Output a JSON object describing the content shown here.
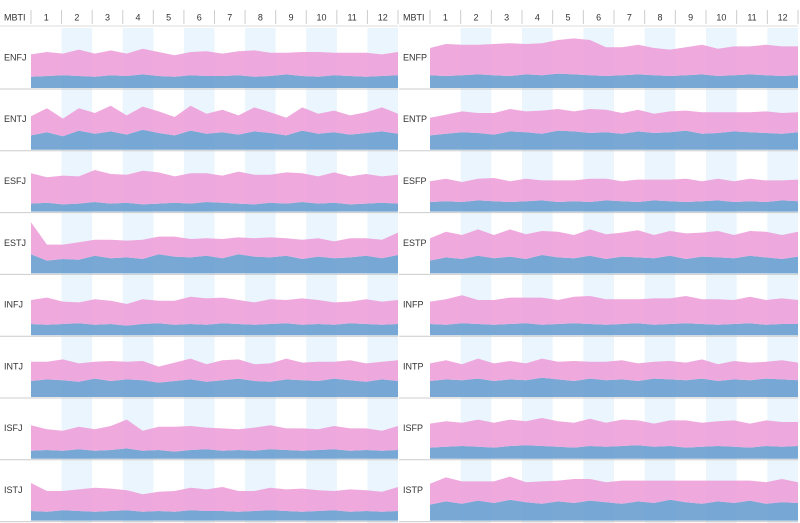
{
  "header": {
    "label": "MBTI",
    "months": [
      1,
      2,
      3,
      4,
      5,
      6,
      7,
      8,
      9,
      10,
      11,
      12
    ]
  },
  "chart_data": [
    {
      "type": "area",
      "title": "ENFJ",
      "ylim": [
        0,
        75
      ],
      "series": [
        {
          "color": "#6a9fcf",
          "values": [
            14,
            15,
            16,
            15,
            14,
            16,
            15,
            17,
            15,
            14,
            16,
            15,
            15,
            16,
            14,
            15,
            17,
            15,
            14,
            16,
            15,
            14,
            15,
            16
          ]
        },
        {
          "color": "#eda0d9",
          "values": [
            28,
            30,
            27,
            33,
            29,
            31,
            28,
            32,
            30,
            27,
            29,
            31,
            28,
            30,
            33,
            29,
            27,
            30,
            31,
            28,
            29,
            30,
            27,
            29
          ]
        }
      ]
    },
    {
      "type": "area",
      "title": "ENTJ",
      "ylim": [
        0,
        75
      ],
      "series": [
        {
          "color": "#6a9fcf",
          "values": [
            18,
            22,
            17,
            24,
            20,
            23,
            19,
            25,
            21,
            18,
            24,
            20,
            22,
            19,
            23,
            21,
            18,
            24,
            20,
            22,
            19,
            21,
            23,
            20
          ]
        },
        {
          "color": "#eda0d9",
          "values": [
            24,
            30,
            22,
            28,
            26,
            32,
            24,
            29,
            27,
            23,
            31,
            25,
            28,
            24,
            30,
            26,
            22,
            29,
            25,
            27,
            24,
            26,
            30,
            25
          ]
        }
      ]
    },
    {
      "type": "area",
      "title": "ESFJ",
      "ylim": [
        0,
        75
      ],
      "series": [
        {
          "color": "#6a9fcf",
          "values": [
            10,
            11,
            9,
            10,
            12,
            10,
            11,
            9,
            10,
            11,
            10,
            12,
            11,
            10,
            9,
            11,
            10,
            12,
            10,
            11,
            9,
            10,
            11,
            10
          ]
        },
        {
          "color": "#eda0d9",
          "values": [
            38,
            32,
            36,
            34,
            40,
            37,
            35,
            42,
            39,
            33,
            38,
            36,
            34,
            40,
            37,
            35,
            39,
            36,
            34,
            38,
            35,
            37,
            33,
            36
          ]
        }
      ]
    },
    {
      "type": "area",
      "title": "ESTJ",
      "ylim": [
        0,
        75
      ],
      "series": [
        {
          "color": "#6a9fcf",
          "values": [
            24,
            16,
            18,
            17,
            22,
            19,
            20,
            18,
            24,
            21,
            20,
            22,
            19,
            24,
            21,
            20,
            22,
            18,
            21,
            19,
            20,
            22,
            19,
            23
          ]
        },
        {
          "color": "#eda0d9",
          "values": [
            40,
            20,
            18,
            22,
            20,
            23,
            21,
            24,
            22,
            25,
            23,
            22,
            24,
            21,
            23,
            25,
            22,
            24,
            23,
            21,
            24,
            22,
            23,
            28
          ]
        }
      ]
    },
    {
      "type": "area",
      "title": "INFJ",
      "ylim": [
        0,
        75
      ],
      "series": [
        {
          "color": "#6a9fcf",
          "values": [
            14,
            13,
            14,
            15,
            13,
            14,
            12,
            14,
            15,
            13,
            14,
            13,
            15,
            14,
            13,
            14,
            15,
            13,
            14,
            13,
            15,
            14,
            13,
            14
          ]
        },
        {
          "color": "#eda0d9",
          "values": [
            30,
            34,
            28,
            26,
            32,
            29,
            27,
            31,
            28,
            30,
            34,
            33,
            32,
            30,
            28,
            31,
            29,
            33,
            30,
            28,
            27,
            31,
            29,
            30
          ]
        }
      ]
    },
    {
      "type": "area",
      "title": "INTJ",
      "ylim": [
        0,
        75
      ],
      "series": [
        {
          "color": "#6a9fcf",
          "values": [
            20,
            22,
            21,
            19,
            23,
            20,
            22,
            21,
            18,
            20,
            22,
            19,
            21,
            23,
            20,
            19,
            22,
            21,
            20,
            23,
            21,
            19,
            22,
            20
          ]
        },
        {
          "color": "#eda0d9",
          "values": [
            24,
            22,
            26,
            23,
            21,
            25,
            22,
            24,
            20,
            23,
            26,
            22,
            25,
            24,
            21,
            23,
            26,
            22,
            24,
            21,
            25,
            23,
            22,
            26
          ]
        }
      ]
    },
    {
      "type": "area",
      "title": "ISFJ",
      "ylim": [
        0,
        75
      ],
      "series": [
        {
          "color": "#6a9fcf",
          "values": [
            10,
            11,
            10,
            12,
            10,
            11,
            13,
            10,
            11,
            9,
            11,
            12,
            10,
            11,
            10,
            12,
            11,
            10,
            11,
            12,
            10,
            11,
            10,
            11
          ]
        },
        {
          "color": "#eda0d9",
          "values": [
            32,
            26,
            25,
            28,
            27,
            30,
            36,
            25,
            29,
            31,
            30,
            27,
            28,
            26,
            29,
            30,
            27,
            28,
            26,
            29,
            28,
            27,
            25,
            30
          ]
        }
      ]
    },
    {
      "type": "area",
      "title": "ISTJ",
      "ylim": [
        0,
        75
      ],
      "series": [
        {
          "color": "#6a9fcf",
          "values": [
            12,
            11,
            13,
            12,
            11,
            12,
            13,
            11,
            12,
            11,
            13,
            12,
            12,
            11,
            12,
            13,
            12,
            11,
            12,
            13,
            11,
            12,
            11,
            12
          ]
        },
        {
          "color": "#eda0d9",
          "values": [
            35,
            26,
            24,
            27,
            30,
            28,
            25,
            22,
            24,
            26,
            28,
            27,
            30,
            26,
            25,
            28,
            27,
            29,
            26,
            24,
            28,
            26,
            25,
            30
          ]
        }
      ]
    },
    {
      "type": "area",
      "title": "ENFP",
      "ylim": [
        0,
        75
      ],
      "series": [
        {
          "color": "#6a9fcf",
          "values": [
            16,
            15,
            16,
            17,
            16,
            15,
            17,
            16,
            18,
            17,
            16,
            15,
            16,
            17,
            16,
            15,
            16,
            17,
            15,
            16,
            17,
            16,
            15,
            16
          ]
        },
        {
          "color": "#eda0d9",
          "values": [
            34,
            40,
            38,
            37,
            39,
            41,
            38,
            40,
            42,
            45,
            44,
            36,
            35,
            37,
            34,
            33,
            35,
            37,
            34,
            36,
            35,
            38,
            37,
            36
          ]
        }
      ]
    },
    {
      "type": "area",
      "title": "ENTP",
      "ylim": [
        0,
        75
      ],
      "series": [
        {
          "color": "#6a9fcf",
          "values": [
            18,
            20,
            22,
            21,
            19,
            23,
            22,
            20,
            24,
            23,
            21,
            22,
            20,
            23,
            21,
            22,
            24,
            20,
            21,
            23,
            22,
            21,
            20,
            22
          ]
        },
        {
          "color": "#eda0d9",
          "values": [
            22,
            24,
            26,
            25,
            27,
            28,
            26,
            29,
            27,
            25,
            30,
            28,
            26,
            27,
            24,
            26,
            25,
            27,
            26,
            24,
            25,
            27,
            26,
            25
          ]
        }
      ]
    },
    {
      "type": "area",
      "title": "ESFP",
      "ylim": [
        0,
        75
      ],
      "series": [
        {
          "color": "#6a9fcf",
          "values": [
            12,
            13,
            12,
            14,
            13,
            12,
            13,
            14,
            12,
            13,
            12,
            14,
            13,
            12,
            14,
            13,
            12,
            13,
            14,
            12,
            13,
            12,
            14,
            13
          ]
        },
        {
          "color": "#eda0d9",
          "values": [
            26,
            28,
            25,
            27,
            29,
            26,
            28,
            25,
            27,
            26,
            29,
            27,
            25,
            28,
            26,
            27,
            29,
            25,
            27,
            26,
            28,
            27,
            25,
            27
          ]
        }
      ]
    },
    {
      "type": "area",
      "title": "ESTP",
      "ylim": [
        0,
        75
      ],
      "series": [
        {
          "color": "#6a9fcf",
          "values": [
            16,
            20,
            18,
            22,
            19,
            21,
            18,
            23,
            20,
            19,
            22,
            18,
            21,
            20,
            19,
            22,
            18,
            21,
            20,
            19,
            22,
            20,
            18,
            21
          ]
        },
        {
          "color": "#eda0d9",
          "values": [
            28,
            32,
            30,
            33,
            29,
            34,
            31,
            30,
            32,
            29,
            33,
            31,
            30,
            34,
            29,
            31,
            32,
            30,
            33,
            29,
            31,
            32,
            30,
            31
          ]
        }
      ]
    },
    {
      "type": "area",
      "title": "INFP",
      "ylim": [
        0,
        75
      ],
      "series": [
        {
          "color": "#6a9fcf",
          "values": [
            14,
            13,
            15,
            14,
            13,
            14,
            15,
            13,
            14,
            15,
            14,
            13,
            14,
            15,
            13,
            14,
            15,
            14,
            13,
            14,
            15,
            13,
            14,
            14
          ]
        },
        {
          "color": "#eda0d9",
          "values": [
            28,
            32,
            35,
            30,
            31,
            33,
            32,
            34,
            30,
            33,
            35,
            32,
            31,
            30,
            33,
            32,
            34,
            31,
            32,
            30,
            33,
            31,
            32,
            30
          ]
        }
      ]
    },
    {
      "type": "area",
      "title": "INTP",
      "ylim": [
        0,
        75
      ],
      "series": [
        {
          "color": "#6a9fcf",
          "values": [
            20,
            22,
            21,
            23,
            20,
            22,
            21,
            24,
            22,
            20,
            23,
            21,
            22,
            20,
            23,
            22,
            21,
            23,
            20,
            22,
            21,
            23,
            22,
            21
          ]
        },
        {
          "color": "#eda0d9",
          "values": [
            22,
            24,
            20,
            25,
            22,
            23,
            21,
            24,
            22,
            25,
            21,
            23,
            24,
            22,
            21,
            23,
            22,
            24,
            21,
            23,
            22,
            21,
            24,
            22
          ]
        }
      ]
    },
    {
      "type": "area",
      "title": "ISFP",
      "ylim": [
        0,
        75
      ],
      "series": [
        {
          "color": "#6a9fcf",
          "values": [
            14,
            15,
            16,
            15,
            14,
            16,
            17,
            16,
            15,
            14,
            16,
            15,
            16,
            17,
            15,
            16,
            14,
            15,
            16,
            15,
            14,
            16,
            15,
            16
          ]
        },
        {
          "color": "#eda0d9",
          "values": [
            30,
            32,
            29,
            34,
            31,
            33,
            30,
            35,
            32,
            31,
            34,
            30,
            33,
            31,
            29,
            32,
            34,
            30,
            31,
            33,
            30,
            32,
            31,
            30
          ]
        }
      ]
    },
    {
      "type": "area",
      "title": "ISTP",
      "ylim": [
        0,
        75
      ],
      "series": [
        {
          "color": "#6a9fcf",
          "values": [
            20,
            24,
            21,
            25,
            22,
            26,
            23,
            21,
            24,
            22,
            25,
            23,
            21,
            24,
            22,
            26,
            23,
            21,
            24,
            22,
            25,
            21,
            23,
            22
          ]
        },
        {
          "color": "#eda0d9",
          "values": [
            26,
            30,
            28,
            24,
            27,
            29,
            25,
            28,
            26,
            30,
            27,
            25,
            29,
            26,
            28,
            24,
            27,
            29,
            26,
            28,
            25,
            27,
            29,
            26
          ]
        }
      ]
    }
  ]
}
